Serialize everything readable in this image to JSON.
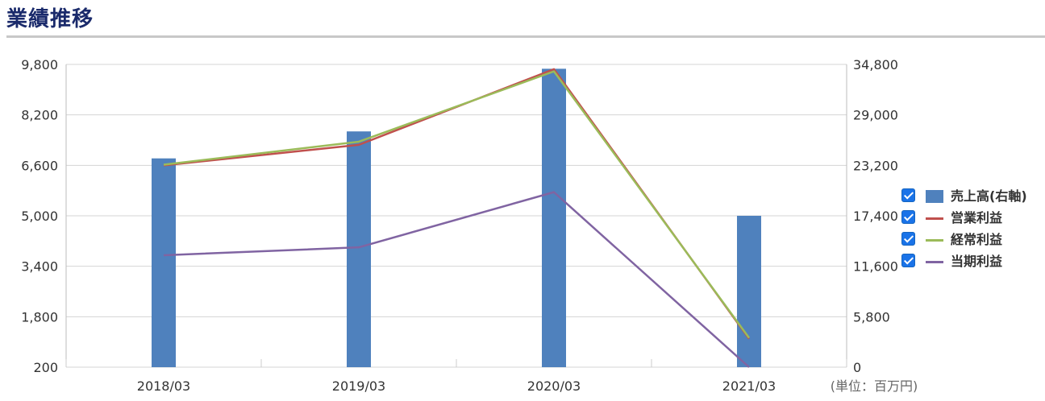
{
  "header": {
    "title": "業績推移"
  },
  "chart_data": {
    "type": "bar+line",
    "categories": [
      "2018/03",
      "2019/03",
      "2020/03",
      "2021/03"
    ],
    "left_axis": {
      "ticks": [
        "9,800",
        "8,200",
        "6,600",
        "5,000",
        "3,400",
        "1,800",
        "200"
      ],
      "min": 200,
      "max": 9800
    },
    "right_axis": {
      "ticks": [
        "34,800",
        "29,000",
        "23,200",
        "17,400",
        "11,600",
        "5,800",
        "0"
      ],
      "min": 0,
      "max": 34800
    },
    "unit_label": "(単位：百万円)",
    "series": [
      {
        "name": "売上高(右軸)",
        "kind": "bar",
        "axis": "right",
        "color": "#4f81bd",
        "values": [
          24000,
          27100,
          34300,
          17400
        ]
      },
      {
        "name": "営業利益",
        "kind": "line",
        "axis": "left",
        "color": "#c0504d",
        "values": [
          6600,
          7250,
          9650,
          1100
        ]
      },
      {
        "name": "経常利益",
        "kind": "line",
        "axis": "left",
        "color": "#9bbb59",
        "values": [
          6620,
          7350,
          9580,
          1130
        ]
      },
      {
        "name": "当期利益",
        "kind": "line",
        "axis": "left",
        "color": "#8064a2",
        "values": [
          3750,
          4000,
          5750,
          200
        ]
      }
    ],
    "grid": true,
    "legend_position": "right"
  }
}
